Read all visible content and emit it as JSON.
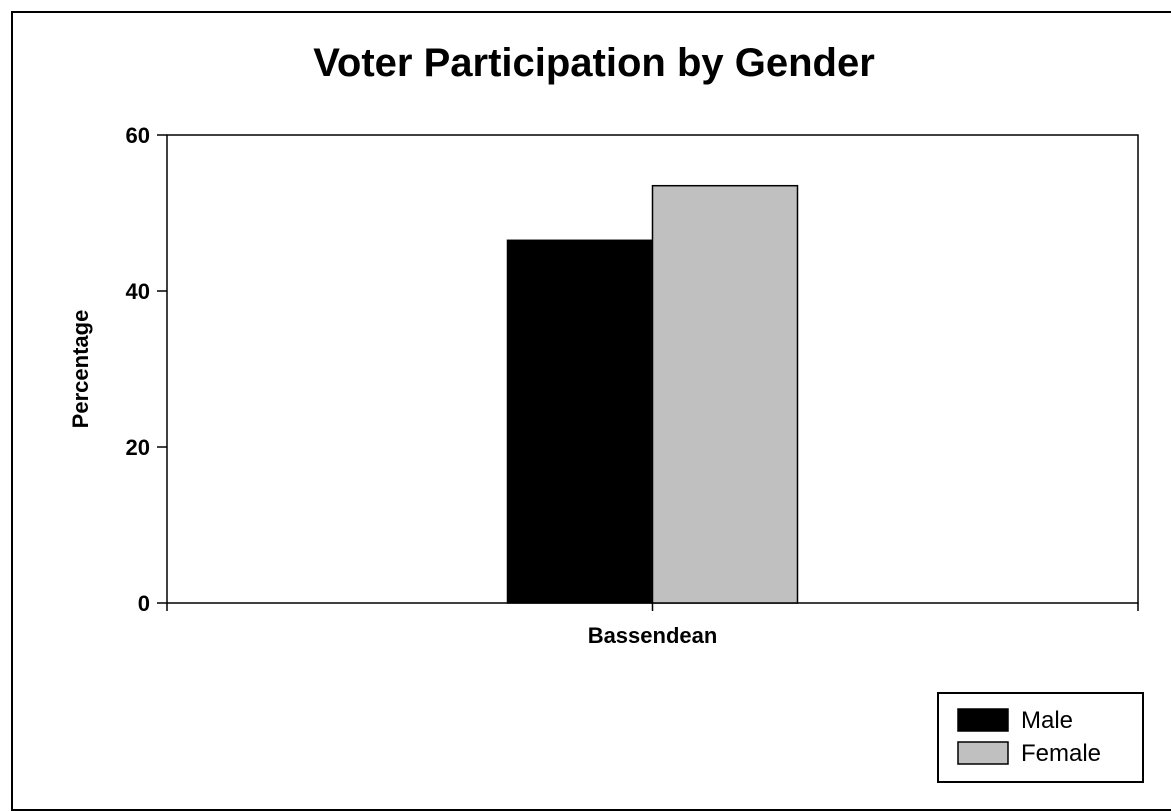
{
  "chart_data": {
    "type": "bar",
    "title": "Voter Participation by Gender",
    "xlabel": "",
    "ylabel": "Percentage",
    "categories": [
      "Bassendean"
    ],
    "series": [
      {
        "name": "Male",
        "values": [
          46.5
        ],
        "color": "#000000"
      },
      {
        "name": "Female",
        "values": [
          53.5
        ],
        "color": "#c0c0c0"
      }
    ],
    "ylim": [
      0,
      60
    ],
    "yticks": [
      0,
      20,
      40,
      60
    ],
    "grid": false,
    "legend_position": "bottom-right"
  }
}
